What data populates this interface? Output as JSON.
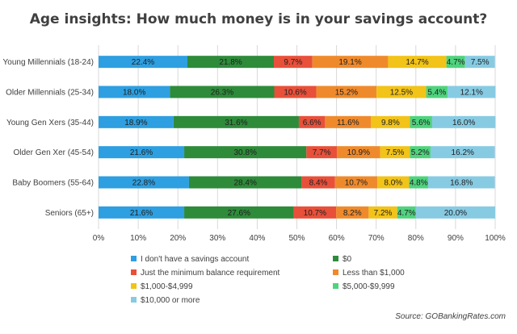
{
  "chart_data": {
    "type": "bar",
    "orientation": "horizontal",
    "stacked": true,
    "title": "Age insights: How much money is in your savings account?",
    "categories": [
      "Young Millennials (18-24)",
      "Older Millennials (25-34)",
      "Young Gen Xers (35-44)",
      "Older Gen Xer (45-54)",
      "Baby Boomers (55-64)",
      "Seniors (65+)"
    ],
    "series": [
      {
        "name": "I don't have a savings account",
        "color": "#2E9FE0",
        "values": [
          22.4,
          18.0,
          18.9,
          21.6,
          22.8,
          21.6
        ]
      },
      {
        "name": "$0",
        "color": "#2E8B3A",
        "values": [
          21.8,
          26.3,
          31.6,
          30.8,
          28.4,
          27.6
        ]
      },
      {
        "name": "Just the minimum balance requirement",
        "color": "#E8503A",
        "values": [
          9.7,
          10.6,
          6.6,
          7.7,
          8.4,
          10.7
        ]
      },
      {
        "name": "Less than $1,000",
        "color": "#EF8A2C",
        "values": [
          19.1,
          15.2,
          11.6,
          10.9,
          10.7,
          8.2
        ]
      },
      {
        "name": "$1,000-$4,999",
        "color": "#F2C318",
        "values": [
          14.7,
          12.5,
          9.8,
          7.5,
          8.0,
          7.2
        ]
      },
      {
        "name": "$5,000-$9,999",
        "color": "#4FD37D",
        "values": [
          4.7,
          5.4,
          5.6,
          5.2,
          4.8,
          4.7
        ]
      },
      {
        "name": "$10,000 or more",
        "color": "#87CBE3",
        "values": [
          7.5,
          12.1,
          16.0,
          16.2,
          16.8,
          20.0
        ]
      }
    ],
    "xlim": [
      0,
      100
    ],
    "xticks": [
      "0%",
      "10%",
      "20%",
      "30%",
      "40%",
      "50%",
      "60%",
      "70%",
      "80%",
      "90%",
      "100%"
    ],
    "value_suffix": "%",
    "legend_position": "bottom",
    "grid": true
  },
  "source": "Source: GOBankingRates.com"
}
